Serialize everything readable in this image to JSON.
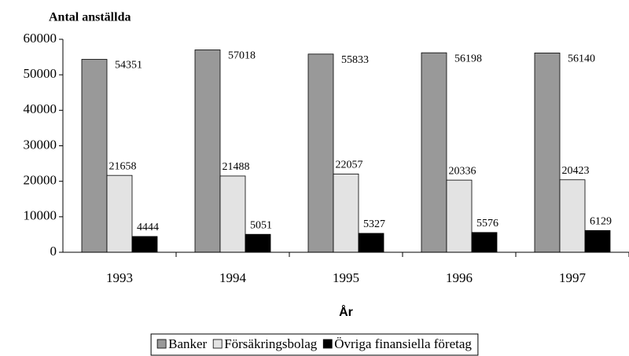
{
  "chart_data": {
    "type": "bar",
    "title": "Antal anställda",
    "x_label": "År",
    "categories": [
      "1993",
      "1994",
      "1995",
      "1996",
      "1997"
    ],
    "series": [
      {
        "name": "Banker",
        "color": "#999999",
        "values": [
          54351,
          57018,
          55833,
          56198,
          56140
        ]
      },
      {
        "name": "Försäkringsbolag",
        "color": "#e3e3e3",
        "values": [
          21658,
          21488,
          22057,
          20336,
          20423
        ]
      },
      {
        "name": "Övriga finansiella företag",
        "color": "#000000",
        "values": [
          4444,
          5051,
          5327,
          5576,
          6129
        ]
      }
    ],
    "ylim": [
      0,
      60000
    ],
    "yticks": [
      0,
      10000,
      20000,
      30000,
      40000,
      50000,
      60000
    ],
    "grid": false,
    "legend": "bottom"
  }
}
